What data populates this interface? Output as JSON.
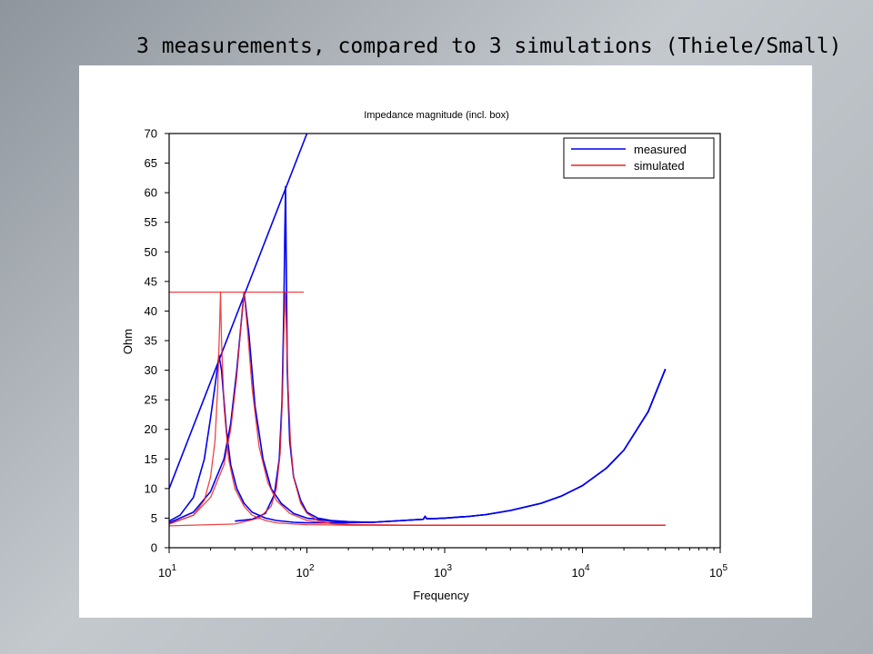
{
  "slide": {
    "title": "3 measurements, compared to 3 simulations (Thiele/Small)"
  },
  "chart_data": {
    "type": "line",
    "title": "Impedance magnitude (incl. box)",
    "xlabel": "Frequency",
    "ylabel": "Ohm",
    "xscale": "log",
    "xlim": [
      10,
      100000
    ],
    "ylim": [
      0,
      70
    ],
    "yticks": [
      0,
      5,
      10,
      15,
      20,
      25,
      30,
      35,
      40,
      45,
      50,
      55,
      60,
      65,
      70
    ],
    "xticks": [
      {
        "value": 10,
        "base": "10",
        "exp": "1"
      },
      {
        "value": 100,
        "base": "10",
        "exp": "2"
      },
      {
        "value": 1000,
        "base": "10",
        "exp": "3"
      },
      {
        "value": 10000,
        "base": "10",
        "exp": "4"
      },
      {
        "value": 100000,
        "base": "10",
        "exp": "5"
      }
    ],
    "grid": false,
    "legend": {
      "position": "top-right",
      "entries": [
        {
          "label": "measured",
          "color": "#0000ee"
        },
        {
          "label": "simulated",
          "color": "#ee2222"
        }
      ]
    },
    "series": [
      {
        "name": "measured",
        "color": "#0000ee",
        "traces": [
          {
            "x": [
              10,
              12,
              15,
              18,
              20,
              22,
              23,
              24,
              26,
              28,
              31,
              35,
              40,
              50,
              60,
              80,
              100,
              150,
              200,
              300,
              500,
              700,
              720,
              740,
              800,
              1000,
              1500,
              2000,
              3000,
              5000,
              7000,
              10000,
              15000,
              20000,
              30000,
              40000
            ],
            "y": [
              4.5,
              5.5,
              8.5,
              15,
              22,
              29,
              32.5,
              30,
              20,
              14,
              10,
              7.5,
              6,
              5,
              4.6,
              4.3,
              4.2,
              4.2,
              4.2,
              4.3,
              4.6,
              4.8,
              5.3,
              4.9,
              4.9,
              5,
              5.3,
              5.6,
              6.3,
              7.5,
              8.7,
              10.5,
              13.5,
              16.5,
              23,
              30.2
            ]
          },
          {
            "x": [
              10,
              15,
              20,
              25,
              28,
              31,
              33,
              35,
              38,
              42,
              48,
              55,
              65,
              80,
              100,
              150,
              200,
              300,
              500,
              700,
              720,
              740,
              800,
              1000,
              1500,
              2000,
              3000,
              5000,
              7000,
              10000,
              15000,
              20000,
              30000,
              40000
            ],
            "y": [
              4.2,
              6,
              9.5,
              15,
              21,
              30,
              37,
              43.2,
              36,
              24,
              15,
              10,
              7.5,
              5.8,
              5,
              4.5,
              4.3,
              4.3,
              4.6,
              4.8,
              5.3,
              4.9,
              4.9,
              5,
              5.3,
              5.6,
              6.3,
              7.5,
              8.7,
              10.5,
              13.5,
              16.5,
              23,
              30.2
            ]
          },
          {
            "x": [
              30,
              40,
              50,
              58,
              63,
              66,
              68,
              69,
              70,
              71,
              72,
              75,
              80,
              90,
              100,
              120,
              150,
              200,
              300,
              500,
              700,
              720,
              740,
              800,
              1000,
              1500,
              2000,
              3000,
              5000,
              7000,
              10000,
              15000,
              20000,
              30000,
              40000
            ],
            "y": [
              4.5,
              4.8,
              5.8,
              9,
              15,
              25,
              40,
              52,
              61,
              45,
              30,
              18,
              12,
              8,
              6,
              5,
              4.6,
              4.4,
              4.3,
              4.6,
              4.8,
              5.3,
              4.9,
              4.9,
              5,
              5.3,
              5.6,
              6.3,
              7.5,
              8.7,
              10.5,
              13.5,
              16.5,
              23,
              30.2
            ]
          },
          {
            "x": [
              10,
              100
            ],
            "y": [
              10,
              70
            ]
          }
        ]
      },
      {
        "name": "simulated",
        "color": "#ee2222",
        "traces": [
          {
            "x": [
              10,
              15,
              18,
              20,
              21.5,
              22.5,
              23.2,
              23.6,
              24,
              25,
              27,
              30,
              35,
              40,
              50,
              60,
              80,
              100,
              150,
              200,
              500,
              1000,
              5000,
              10000,
              40000
            ],
            "y": [
              4,
              5.5,
              8,
              12,
              18,
              27,
              37,
              43.2,
              35,
              24,
              15,
              10,
              7,
              5.5,
              4.6,
              4.2,
              4,
              3.9,
              3.85,
              3.8,
              3.8,
              3.8,
              3.8,
              3.8,
              3.8
            ]
          },
          {
            "x": [
              10,
              15,
              20,
              25,
              28,
              31,
              33,
              35,
              37,
              40,
              45,
              52,
              60,
              75,
              100,
              150,
              200,
              500,
              1000,
              5000,
              10000,
              40000
            ],
            "y": [
              4,
              5.5,
              8.5,
              14,
              20,
              29,
              37,
              43.2,
              37,
              27,
              17,
              11,
              8,
              5.8,
              4.6,
              4.1,
              3.9,
              3.8,
              3.8,
              3.8,
              3.8,
              3.8
            ]
          },
          {
            "x": [
              10,
              30,
              45,
              55,
              60,
              64,
              66.5,
              68,
              69.5,
              71,
              73,
              76,
              80,
              90,
              100,
              120,
              150,
              200,
              500,
              1000,
              5000,
              10000,
              40000
            ],
            "y": [
              3.7,
              4,
              5,
              7,
              10,
              16,
              26,
              36,
              43.2,
              37,
              27,
              18,
              12,
              7.5,
              5.8,
              4.6,
              4.1,
              3.9,
              3.8,
              3.8,
              3.8,
              3.8,
              3.8
            ]
          },
          {
            "x": [
              10,
              95
            ],
            "y": [
              43.2,
              43.2
            ]
          }
        ]
      }
    ]
  }
}
